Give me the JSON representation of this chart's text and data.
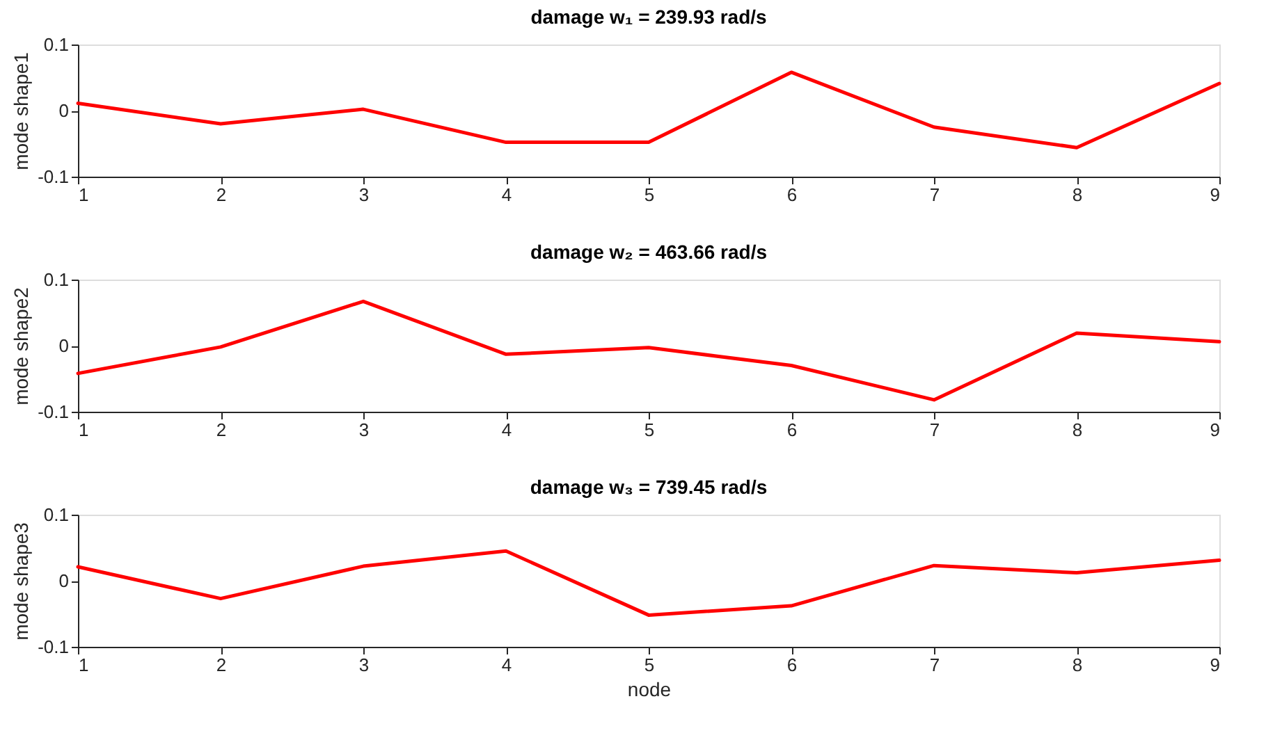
{
  "chart_data": [
    {
      "type": "line",
      "title": "damage w₁ = 239.93 rad/s",
      "ylabel": "mode shape1",
      "x": [
        1,
        2,
        3,
        4,
        5,
        6,
        7,
        8,
        9
      ],
      "series": [
        {
          "color": "#ff0000",
          "values": [
            0.011,
            -0.02,
            0.002,
            -0.048,
            -0.048,
            0.058,
            -0.025,
            -0.056,
            0.041
          ]
        }
      ],
      "xlim": [
        1,
        9
      ],
      "xticks": [
        1,
        2,
        3,
        4,
        5,
        6,
        7,
        8,
        9
      ],
      "ylim": [
        -0.1,
        0.1
      ],
      "yticks": [
        -0.1,
        0,
        0.1
      ],
      "grid": false,
      "marker": "none",
      "line_style": "solid"
    },
    {
      "type": "line",
      "title": "damage w₂ = 463.66 rad/s",
      "ylabel": "mode shape2",
      "x": [
        1,
        2,
        3,
        4,
        5,
        6,
        7,
        8,
        9
      ],
      "series": [
        {
          "color": "#ff0000",
          "values": [
            -0.042,
            -0.002,
            0.067,
            -0.013,
            -0.003,
            -0.03,
            -0.082,
            0.019,
            0.006
          ]
        }
      ],
      "xlim": [
        1,
        9
      ],
      "xticks": [
        1,
        2,
        3,
        4,
        5,
        6,
        7,
        8,
        9
      ],
      "ylim": [
        -0.1,
        0.1
      ],
      "yticks": [
        -0.1,
        0,
        0.1
      ],
      "grid": false,
      "marker": "none",
      "line_style": "solid"
    },
    {
      "type": "line",
      "title": "damage w₃ = 739.45 rad/s",
      "xlabel": "node",
      "ylabel": "mode shape3",
      "x": [
        1,
        2,
        3,
        4,
        5,
        6,
        7,
        8,
        9
      ],
      "series": [
        {
          "color": "#ff0000",
          "values": [
            0.021,
            -0.027,
            0.022,
            0.045,
            -0.052,
            -0.038,
            0.023,
            0.012,
            0.031
          ]
        }
      ],
      "xlim": [
        1,
        9
      ],
      "xticks": [
        1,
        2,
        3,
        4,
        5,
        6,
        7,
        8,
        9
      ],
      "ylim": [
        -0.1,
        0.1
      ],
      "yticks": [
        -0.1,
        0,
        0.1
      ],
      "grid": false,
      "marker": "none",
      "line_style": "solid"
    }
  ]
}
